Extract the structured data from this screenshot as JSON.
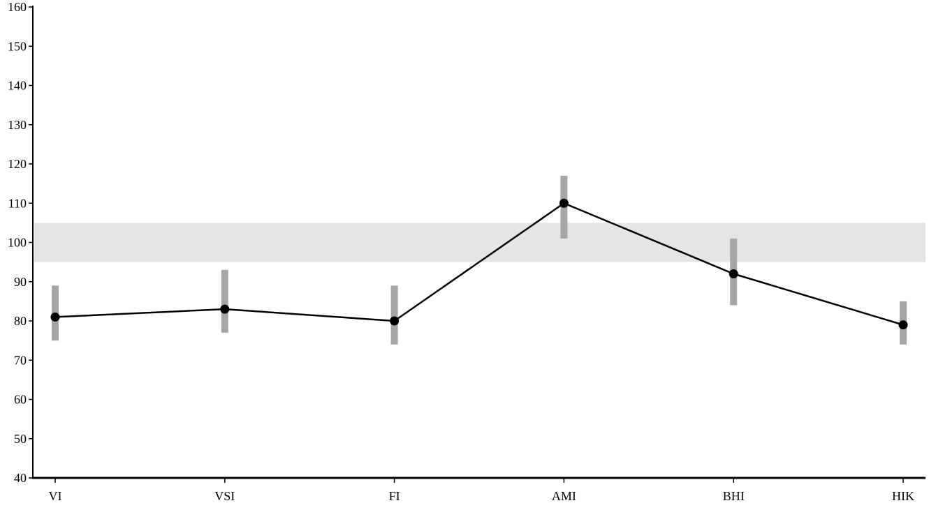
{
  "chart_data": {
    "type": "line",
    "title": "",
    "xlabel": "",
    "ylabel": "",
    "categories": [
      "VI",
      "VSI",
      "FI",
      "AMI",
      "BHI",
      "HIK"
    ],
    "series": [
      {
        "values": [
          81,
          83,
          80,
          110,
          92,
          79
        ],
        "ranges": [
          [
            75,
            89
          ],
          [
            77,
            93
          ],
          [
            74,
            89
          ],
          [
            101,
            117
          ],
          [
            84,
            101
          ],
          [
            74,
            85
          ]
        ]
      }
    ],
    "reference_band": [
      95,
      105
    ],
    "ylim": [
      40,
      160
    ],
    "yticks": [
      40,
      50,
      60,
      70,
      80,
      90,
      100,
      110,
      120,
      130,
      140,
      150,
      160
    ],
    "grid": false,
    "colors": {
      "line": "#000000",
      "marker": "#000000",
      "error_bar": "#a6a6a6",
      "band": "#e5e5e5",
      "axis": "#000000"
    }
  }
}
